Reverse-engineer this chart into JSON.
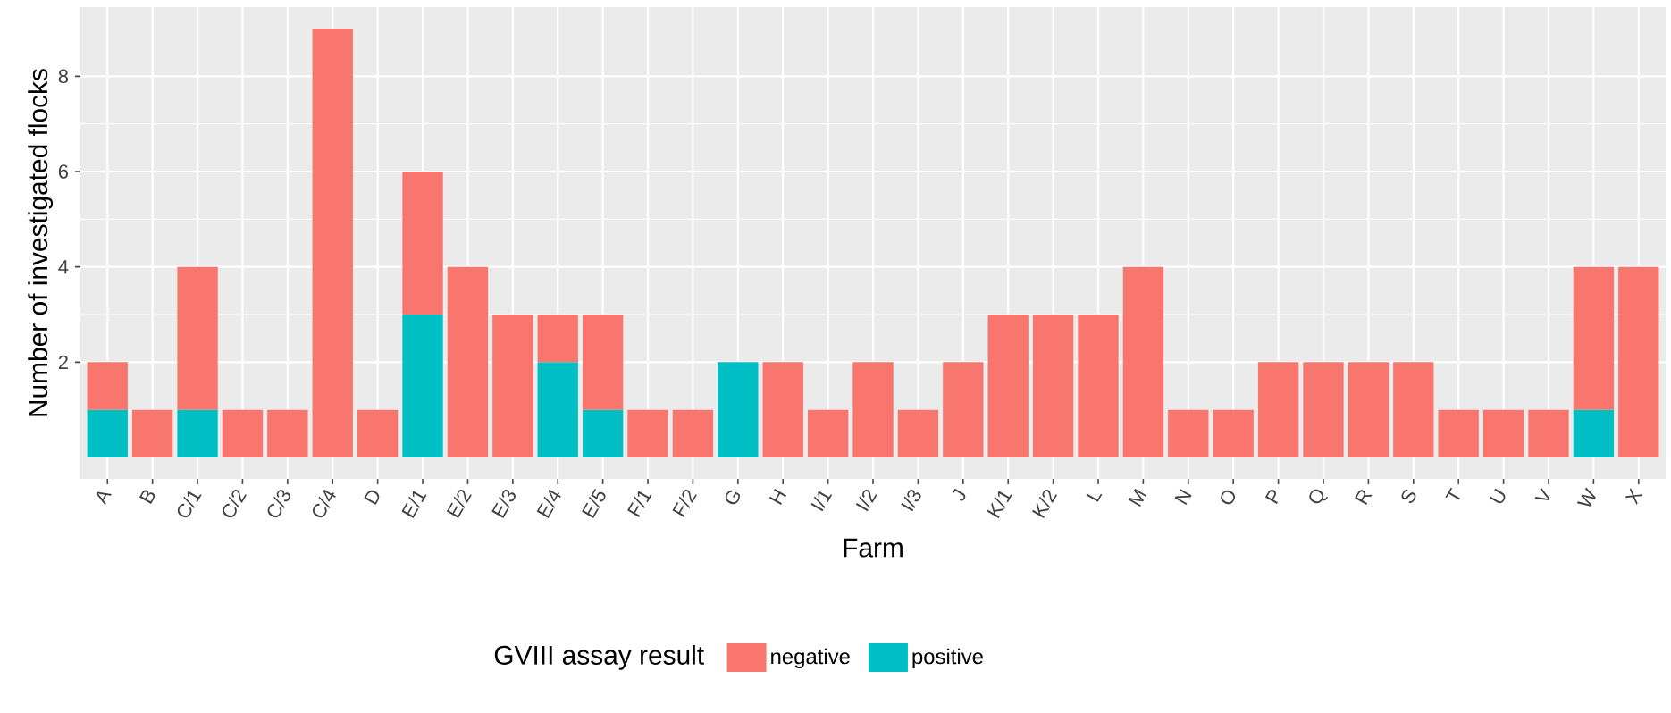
{
  "chart_data": {
    "type": "bar",
    "stacked": true,
    "xlabel": "Farm",
    "ylabel": "Number of investigated flocks",
    "legend_title": "GVIII assay result",
    "legend": "bottom",
    "grid": true,
    "categories": [
      "A",
      "B",
      "C/1",
      "C/2",
      "C/3",
      "C/4",
      "D",
      "E/1",
      "E/2",
      "E/3",
      "E/4",
      "E/5",
      "F/1",
      "F/2",
      "G",
      "H",
      "I/1",
      "I/2",
      "I/3",
      "J",
      "K/1",
      "K/2",
      "L",
      "M",
      "N",
      "O",
      "P",
      "Q",
      "R",
      "S",
      "T",
      "U",
      "V",
      "W",
      "X"
    ],
    "series": [
      {
        "name": "positive",
        "color": "#00bfc4",
        "values": [
          1,
          null,
          1,
          null,
          null,
          null,
          null,
          3,
          null,
          null,
          2,
          1,
          null,
          null,
          2,
          null,
          null,
          null,
          null,
          null,
          null,
          null,
          null,
          null,
          null,
          null,
          null,
          null,
          null,
          null,
          null,
          null,
          null,
          1,
          null
        ]
      },
      {
        "name": "negative",
        "color": "#f8766d",
        "values": [
          1,
          1,
          3,
          1,
          1,
          9,
          1,
          3,
          4,
          3,
          1,
          2,
          1,
          1,
          null,
          2,
          1,
          2,
          1,
          2,
          3,
          3,
          3,
          4,
          1,
          1,
          2,
          2,
          2,
          2,
          1,
          1,
          1,
          3,
          4
        ]
      }
    ],
    "ylim": [
      -0.45,
      9.45
    ],
    "yticks": [
      2,
      4,
      6,
      8
    ]
  }
}
